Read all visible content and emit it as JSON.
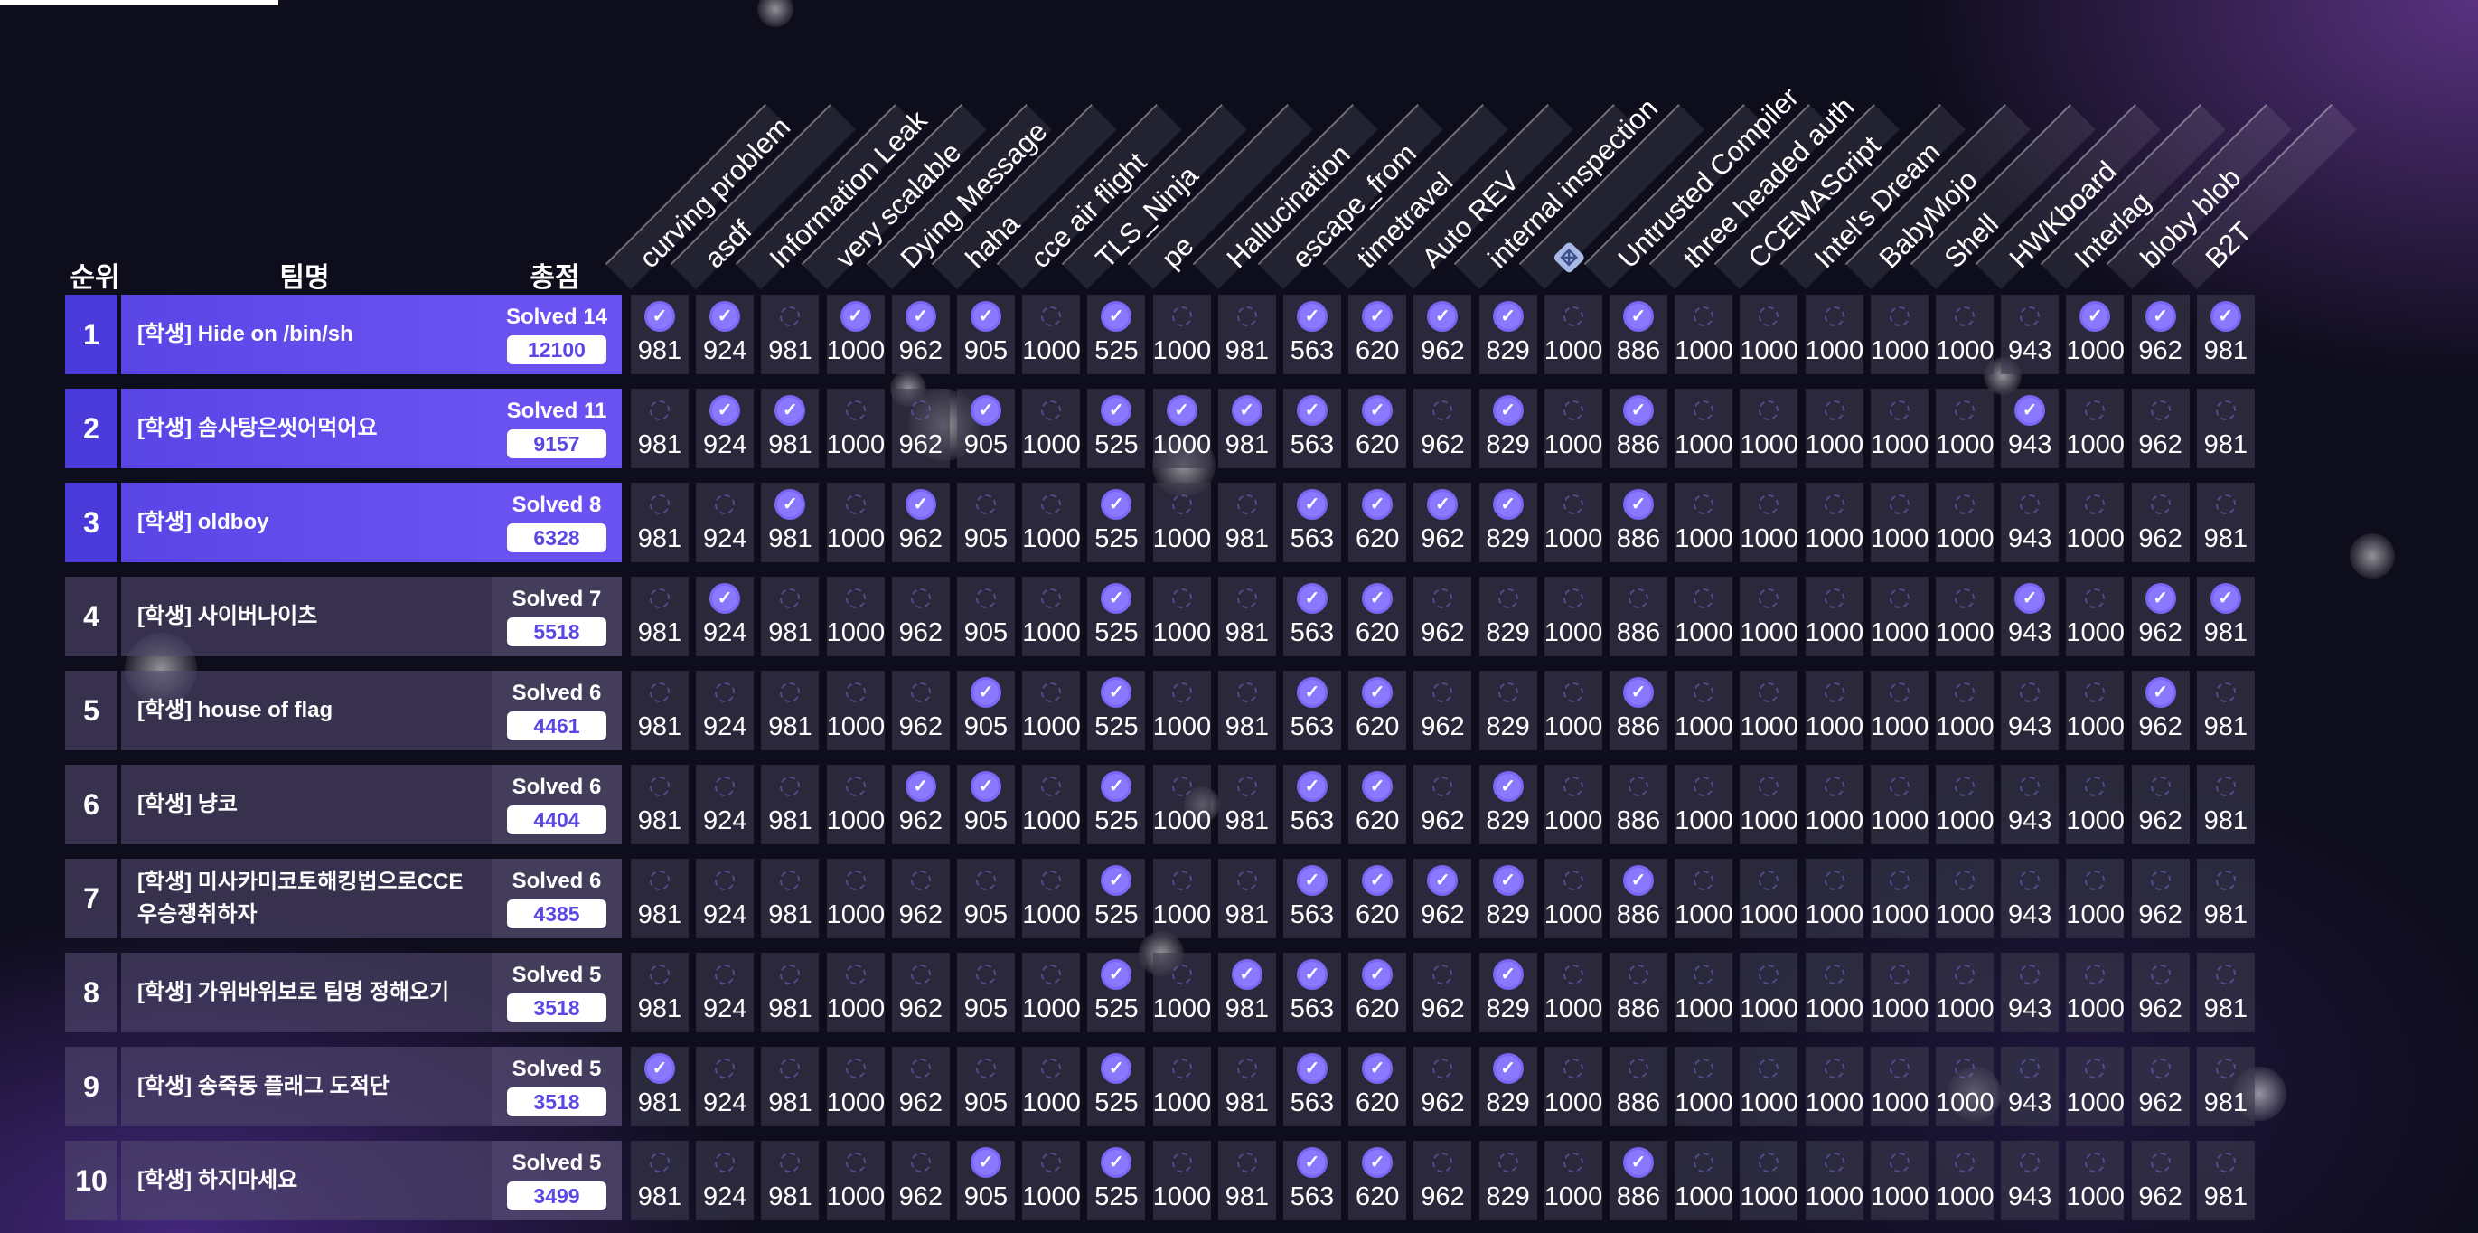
{
  "headers": {
    "rank": "순위",
    "team": "팀명",
    "score": "총점"
  },
  "challenges": [
    {
      "name": "curving problem",
      "points": "981"
    },
    {
      "name": "asdf",
      "points": "924"
    },
    {
      "name": "Information Leak",
      "points": "981"
    },
    {
      "name": "very scalable",
      "points": "1000"
    },
    {
      "name": "Dying Message",
      "points": "962"
    },
    {
      "name": "haha",
      "points": "905"
    },
    {
      "name": "cce air flight",
      "points": "1000"
    },
    {
      "name": "TLS_Ninja",
      "points": "525"
    },
    {
      "name": "pe",
      "points": "1000"
    },
    {
      "name": "Hallucination",
      "points": "981"
    },
    {
      "name": "escape_from",
      "points": "563"
    },
    {
      "name": "timetravel",
      "points": "620"
    },
    {
      "name": "Auto REV",
      "points": "962"
    },
    {
      "name": "internal inspection",
      "points": "829"
    },
    {
      "name": "",
      "icon": "image-icon",
      "points": "1000"
    },
    {
      "name": "Untrusted Compiler",
      "points": "886"
    },
    {
      "name": "three headed auth",
      "points": "1000"
    },
    {
      "name": "CCEMAScript",
      "points": "1000"
    },
    {
      "name": "Intel's Dream",
      "points": "1000"
    },
    {
      "name": "BabyMojo",
      "points": "1000"
    },
    {
      "name": "Shell",
      "points": "1000"
    },
    {
      "name": "HWKboard",
      "points": "943"
    },
    {
      "name": "Interlag",
      "points": "1000"
    },
    {
      "name": "bloby blob",
      "points": "962"
    },
    {
      "name": "B2T",
      "points": "981"
    }
  ],
  "teams": [
    {
      "rank": "1",
      "name": "[학생] Hide on /bin/sh",
      "solved": "Solved 14",
      "score": "12100",
      "top": true,
      "solves": [
        1,
        1,
        0,
        1,
        1,
        1,
        0,
        1,
        0,
        0,
        1,
        1,
        1,
        1,
        0,
        1,
        0,
        0,
        0,
        0,
        0,
        0,
        1,
        1,
        1
      ]
    },
    {
      "rank": "2",
      "name": "[학생] 솜사탕은씻어먹어요",
      "solved": "Solved 11",
      "score": "9157",
      "top": true,
      "solves": [
        0,
        1,
        1,
        0,
        0,
        1,
        0,
        1,
        1,
        1,
        1,
        1,
        0,
        1,
        0,
        1,
        0,
        0,
        0,
        0,
        0,
        1,
        0,
        0,
        0
      ]
    },
    {
      "rank": "3",
      "name": "[학생] oldboy",
      "solved": "Solved 8",
      "score": "6328",
      "top": true,
      "solves": [
        0,
        0,
        1,
        0,
        1,
        0,
        0,
        1,
        0,
        0,
        1,
        1,
        1,
        1,
        0,
        1,
        0,
        0,
        0,
        0,
        0,
        0,
        0,
        0,
        0
      ]
    },
    {
      "rank": "4",
      "name": "[학생] 사이버나이츠",
      "solved": "Solved 7",
      "score": "5518",
      "top": false,
      "solves": [
        0,
        1,
        0,
        0,
        0,
        0,
        0,
        1,
        0,
        0,
        1,
        1,
        0,
        0,
        0,
        0,
        0,
        0,
        0,
        0,
        0,
        1,
        0,
        1,
        1
      ]
    },
    {
      "rank": "5",
      "name": "[학생] house of flag",
      "solved": "Solved 6",
      "score": "4461",
      "top": false,
      "solves": [
        0,
        0,
        0,
        0,
        0,
        1,
        0,
        1,
        0,
        0,
        1,
        1,
        0,
        0,
        0,
        1,
        0,
        0,
        0,
        0,
        0,
        0,
        0,
        1,
        0
      ]
    },
    {
      "rank": "6",
      "name": "[학생] 냥코",
      "solved": "Solved 6",
      "score": "4404",
      "top": false,
      "solves": [
        0,
        0,
        0,
        0,
        1,
        1,
        0,
        1,
        0,
        0,
        1,
        1,
        0,
        1,
        0,
        0,
        0,
        0,
        0,
        0,
        0,
        0,
        0,
        0,
        0
      ]
    },
    {
      "rank": "7",
      "name": "[학생] 미사카미코토해킹법으로CCE우승쟁취하자",
      "solved": "Solved 6",
      "score": "4385",
      "top": false,
      "solves": [
        0,
        0,
        0,
        0,
        0,
        0,
        0,
        1,
        0,
        0,
        1,
        1,
        1,
        1,
        0,
        1,
        0,
        0,
        0,
        0,
        0,
        0,
        0,
        0,
        0
      ]
    },
    {
      "rank": "8",
      "name": "[학생] 가위바위보로 팀명 정해오기",
      "solved": "Solved 5",
      "score": "3518",
      "top": false,
      "solves": [
        0,
        0,
        0,
        0,
        0,
        0,
        0,
        1,
        0,
        1,
        1,
        1,
        0,
        1,
        0,
        0,
        0,
        0,
        0,
        0,
        0,
        0,
        0,
        0,
        0
      ]
    },
    {
      "rank": "9",
      "name": "[학생] 송죽동 플래그 도적단",
      "solved": "Solved 5",
      "score": "3518",
      "top": false,
      "solves": [
        1,
        0,
        0,
        0,
        0,
        0,
        0,
        1,
        0,
        0,
        1,
        1,
        0,
        1,
        0,
        0,
        0,
        0,
        0,
        0,
        0,
        0,
        0,
        0,
        0
      ]
    },
    {
      "rank": "10",
      "name": "[학생] 하지마세요",
      "solved": "Solved 5",
      "score": "3499",
      "top": false,
      "solves": [
        0,
        0,
        0,
        0,
        0,
        1,
        0,
        1,
        0,
        0,
        1,
        1,
        0,
        0,
        0,
        1,
        0,
        0,
        0,
        0,
        0,
        0,
        0,
        0,
        0
      ]
    }
  ]
}
